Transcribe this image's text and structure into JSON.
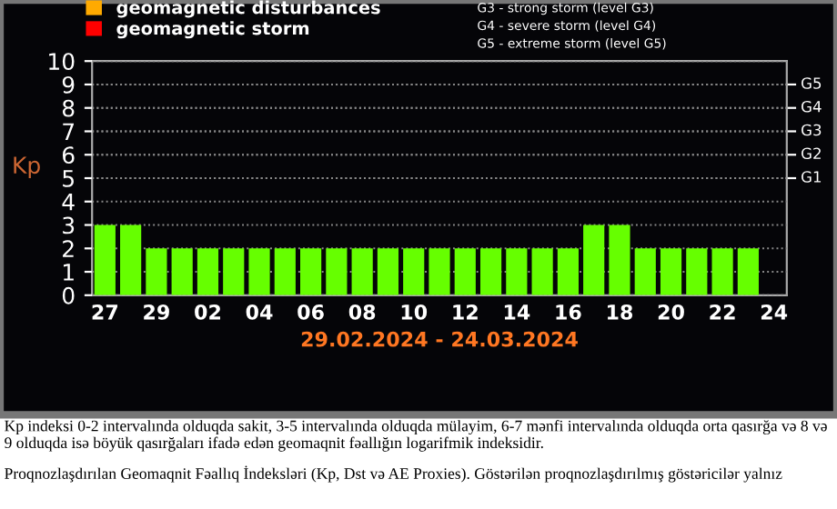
{
  "chart_data": {
    "type": "bar",
    "xlabel": "29.02.2024 - 24.03.2024",
    "ylabel": "Kp",
    "categories": [
      "27",
      null,
      "29",
      null,
      "02",
      null,
      "04",
      null,
      "06",
      null,
      "08",
      null,
      "10",
      null,
      "12",
      null,
      "14",
      null,
      "16",
      null,
      "18",
      null,
      "20",
      null,
      "22",
      null,
      "24"
    ],
    "series": [
      {
        "color": "#66ff00",
        "values": [
          3,
          3,
          2,
          2,
          2,
          2,
          2,
          2,
          2,
          2,
          2,
          2,
          2,
          2,
          2,
          2,
          2,
          2,
          2,
          3,
          3,
          2,
          2,
          2,
          2,
          2,
          null
        ]
      },
      {
        "name": "geomagnetic disturbances",
        "color": "#ffaa00",
        "values": [
          null,
          null,
          null,
          null,
          null,
          null,
          null,
          null,
          null,
          null,
          null,
          null,
          null,
          null,
          null,
          null,
          null,
          null,
          null,
          null,
          null,
          null,
          null,
          null,
          null,
          null,
          null
        ]
      },
      {
        "name": "geomagnetic storm",
        "color": "#ff0000",
        "values": [
          null,
          null,
          null,
          null,
          null,
          null,
          null,
          null,
          null,
          null,
          null,
          null,
          null,
          null,
          null,
          null,
          null,
          null,
          null,
          null,
          null,
          null,
          null,
          null,
          null,
          null,
          null
        ]
      }
    ],
    "ylim": [
      0,
      10
    ],
    "yticks": [
      0,
      1,
      2,
      3,
      4,
      5,
      6,
      7,
      8,
      9,
      10
    ],
    "ref_lines": [
      {
        "axis": "y",
        "value": 5,
        "label": "G1"
      },
      {
        "axis": "y",
        "value": 6,
        "label": "G2"
      },
      {
        "axis": "y",
        "value": 7,
        "label": "G3"
      },
      {
        "axis": "y",
        "value": 8,
        "label": "G4"
      },
      {
        "axis": "y",
        "value": 9,
        "label": "G5"
      }
    ],
    "grid": "y",
    "legend": "top left",
    "annotations": [
      "G3 - strong storm (level G3)",
      "G4 - severe storm (level G4)",
      "G5 - extreme storm (level G5)",
      "Kp indeksi 0-2 intervalında olduqda sakit, 3-5 intervalında olduqda mülayim, 6-7 mənfi intervalında olduqda orta qasırğa və 8 və 9 olduqda isə böyük qasırğaları ifadə edən geomaqnit fəallığın logarifmik indeksidir.",
      "Proqnozlaşdırılan Geomaqnit Fəallıq İndeksləri (Kp, Dst və AE Proxies). Göstərilən proqnozlaşdırılmış göstəricilər yalnız"
    ]
  }
}
